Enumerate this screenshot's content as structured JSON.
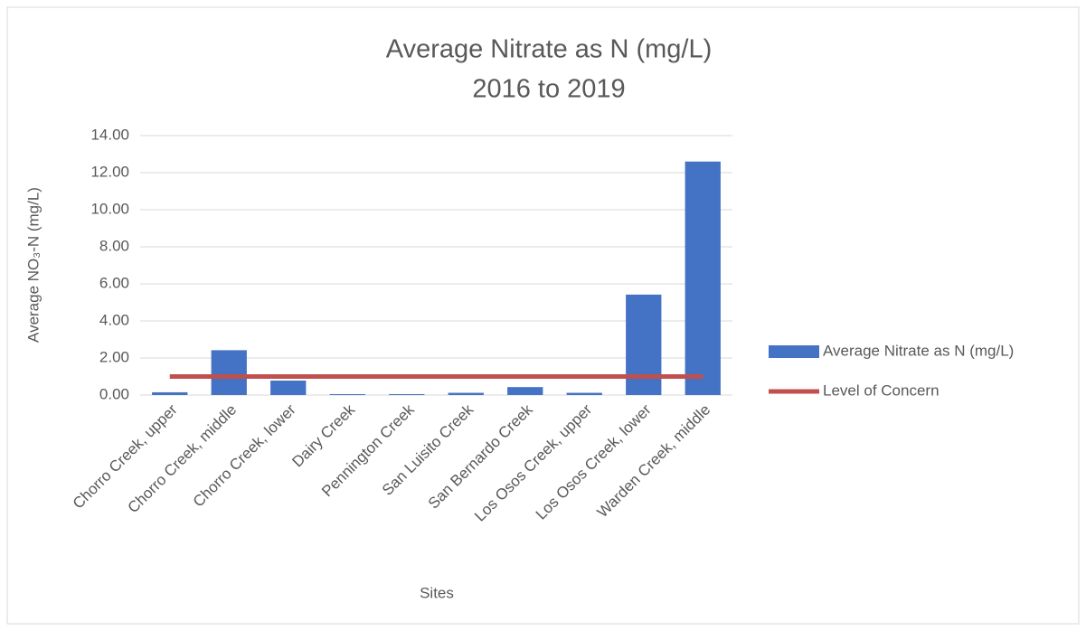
{
  "chart_data": {
    "type": "bar",
    "title": [
      "Average Nitrate as N (mg/L)",
      "2016 to 2019"
    ],
    "x_label": "Sites",
    "y_label": "Average NO₃-N (mg/L)",
    "categories": [
      "Chorro Creek, upper",
      "Chorro Creek, middle",
      "Chorro Creek, lower",
      "Dairy Creek",
      "Pennington Creek",
      "San Luisito Creek",
      "San Bernardo Creek",
      "Los Osos Creek, upper",
      "Los Osos Creek, lower",
      "Warden Creek, middle"
    ],
    "series": [
      {
        "name": "Average Nitrate as N (mg/L)",
        "type": "bar",
        "color": "#4472c4",
        "values": [
          0.15,
          2.42,
          0.78,
          0.05,
          0.05,
          0.12,
          0.43,
          0.12,
          5.42,
          12.6
        ]
      },
      {
        "name": "Level of Concern",
        "type": "line",
        "color": "#c0504d",
        "values": [
          1,
          1,
          1,
          1,
          1,
          1,
          1,
          1,
          1,
          1
        ]
      }
    ],
    "ylim": [
      0,
      14
    ],
    "yticks": [
      {
        "value": 0,
        "label": "0.00"
      },
      {
        "value": 2,
        "label": "2.00"
      },
      {
        "value": 4,
        "label": "4.00"
      },
      {
        "value": 6,
        "label": "6.00"
      },
      {
        "value": 8,
        "label": "8.00"
      },
      {
        "value": 10,
        "label": "10.00"
      },
      {
        "value": 12,
        "label": "12.00"
      },
      {
        "value": 14,
        "label": "14.00"
      }
    ],
    "grid": true,
    "legend": "right"
  }
}
